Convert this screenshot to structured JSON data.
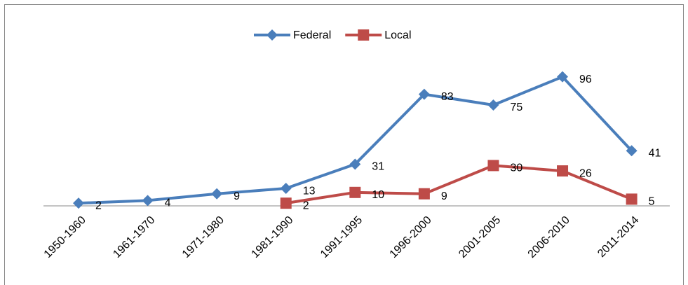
{
  "chart_data": {
    "type": "line",
    "categories": [
      "1950-1960",
      "1961-1970",
      "1971-1980",
      "1981-1990",
      "1991-1995",
      "1996-2000",
      "2001-2005",
      "2006-2010",
      "2011-2014"
    ],
    "series": [
      {
        "name": "Federal",
        "color": "#4a7ebb",
        "values": [
          2,
          4,
          9,
          13,
          31,
          83,
          75,
          96,
          41
        ]
      },
      {
        "name": "Local",
        "color": "#be4b48",
        "values": [
          null,
          null,
          null,
          2,
          10,
          9,
          30,
          26,
          5
        ]
      }
    ],
    "ylim": [
      0,
      100
    ],
    "legend": "top"
  }
}
